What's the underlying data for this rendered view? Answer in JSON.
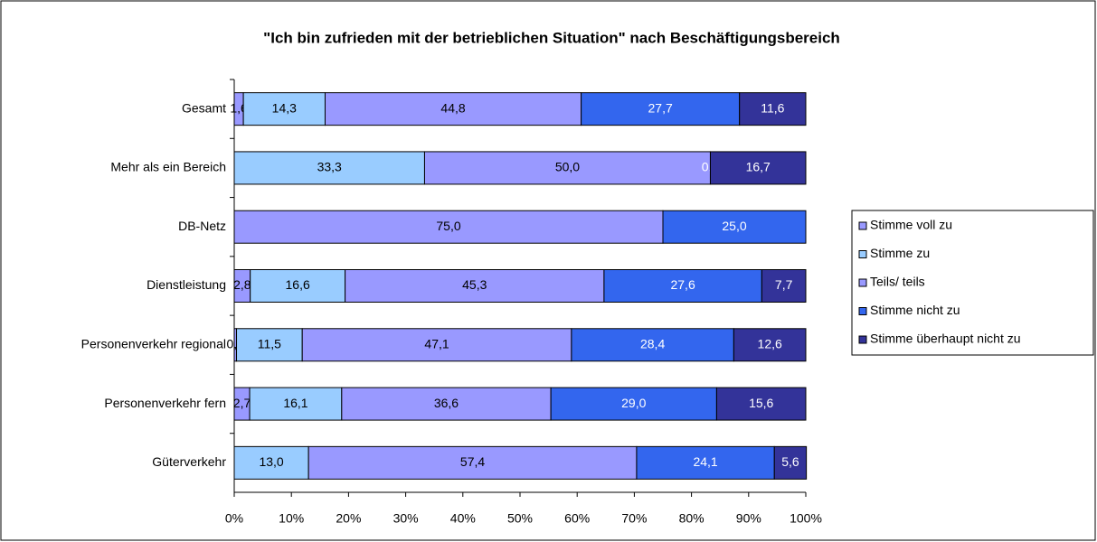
{
  "chart_data": {
    "type": "stacked_barh",
    "title": "\"Ich bin zufrieden mit der betrieblichen Situation\" nach Beschäftigungsbereich",
    "categories": [
      "Gesamt",
      "Mehr als ein Bereich",
      "DB-Netz",
      "Dienstleistung",
      "Personenverkehr regional",
      "Personenverkehr fern",
      "Güterverkehr"
    ],
    "series": [
      {
        "name": "Stimme voll zu",
        "color": "#9999ff",
        "values": [
          1.6,
          null,
          null,
          2.8,
          0.4,
          2.7,
          null
        ],
        "value_labels": [
          "1,6",
          null,
          null,
          "2,8",
          "0,4",
          "2,7",
          null
        ]
      },
      {
        "name": "Stimme zu",
        "color": "#99ccff",
        "values": [
          14.3,
          33.3,
          null,
          16.6,
          11.5,
          16.1,
          13.0
        ],
        "value_labels": [
          "14,3",
          "33,3",
          null,
          "16,6",
          "11,5",
          "16,1",
          "13,0"
        ]
      },
      {
        "name": "Teils/ teils",
        "color": "#9999ff",
        "values": [
          44.8,
          50.0,
          75.0,
          45.3,
          47.1,
          36.6,
          57.4
        ],
        "value_labels": [
          "44,8",
          "50,0",
          "75,0",
          "45,3",
          "47,1",
          "36,6",
          "57,4"
        ]
      },
      {
        "name": "Stimme nicht zu",
        "color": "#3366ee",
        "values": [
          27.7,
          0,
          25.0,
          27.6,
          28.4,
          29.0,
          24.1
        ],
        "value_labels": [
          "27,7",
          "0,0",
          "25,0",
          "27,6",
          "28,4",
          "29,0",
          "24,1"
        ]
      },
      {
        "name": "Stimme überhaupt nicht zu",
        "color": "#333399",
        "values": [
          11.6,
          16.7,
          null,
          7.7,
          12.6,
          15.6,
          5.6
        ],
        "value_labels": [
          "11,6",
          "16,7",
          null,
          "7,7",
          "12,6",
          "15,6",
          "5,6"
        ]
      }
    ],
    "xlim": [
      0,
      100
    ],
    "xticks": [
      {
        "value": 0,
        "label": "0%"
      },
      {
        "value": 10,
        "label": "10%"
      },
      {
        "value": 20,
        "label": "20%"
      },
      {
        "value": 30,
        "label": "30%"
      },
      {
        "value": 40,
        "label": "40%"
      },
      {
        "value": 50,
        "label": "50%"
      },
      {
        "value": 60,
        "label": "60%"
      },
      {
        "value": 70,
        "label": "70%"
      },
      {
        "value": 80,
        "label": "80%"
      },
      {
        "value": 90,
        "label": "90%"
      },
      {
        "value": 100,
        "label": "100%"
      }
    ],
    "grid": false,
    "legend": "right"
  }
}
